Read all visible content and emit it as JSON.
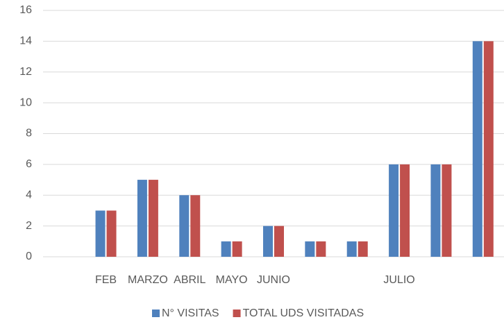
{
  "chart_data": {
    "type": "bar",
    "categories": [
      null,
      "FEB",
      "MARZO",
      "ABRIL",
      "MAYO",
      "JUNIO",
      null,
      null,
      "JULIO",
      null,
      null
    ],
    "series": [
      {
        "name": "N° VISITAS",
        "color": "#4f81bd",
        "values": [
          null,
          3,
          5,
          4,
          1,
          2,
          1,
          1,
          6,
          6,
          14
        ]
      },
      {
        "name": "TOTAL UDS VISITADAS",
        "color": "#c0504d",
        "values": [
          null,
          3,
          5,
          4,
          1,
          2,
          1,
          1,
          6,
          6,
          14
        ]
      }
    ],
    "ylim": [
      0,
      16
    ],
    "yticks": [
      0,
      2,
      4,
      6,
      8,
      10,
      12,
      14,
      16
    ],
    "grid": true,
    "legend": "bottom"
  }
}
